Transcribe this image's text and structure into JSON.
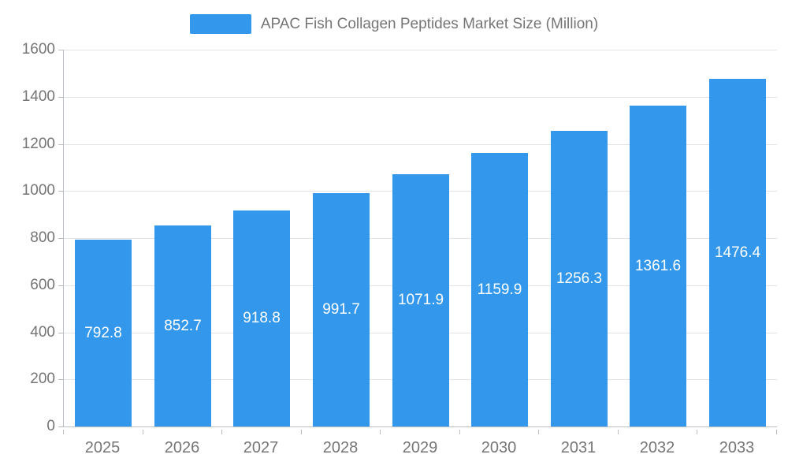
{
  "legend": {
    "label": "APAC Fish Collagen Peptides Market Size (Million)"
  },
  "chart_data": {
    "type": "bar",
    "title": "APAC Fish Collagen Peptides Market Size (Million)",
    "series_name": "APAC Fish Collagen Peptides Market Size (Million)",
    "categories": [
      "2025",
      "2026",
      "2027",
      "2028",
      "2029",
      "2030",
      "2031",
      "2032",
      "2033"
    ],
    "values": [
      792.8,
      852.7,
      918.8,
      991.7,
      1071.9,
      1159.9,
      1256.3,
      1361.6,
      1476.4
    ],
    "value_labels": [
      "792.8",
      "852.7",
      "918.8",
      "991.7",
      "1071.9",
      "1159.9",
      "1256.3",
      "1361.6",
      "1476.4"
    ],
    "xlabel": "",
    "ylabel": "",
    "ylim": [
      0,
      1600
    ],
    "ytick_step": 200,
    "ytick_labels": [
      "0",
      "200",
      "400",
      "600",
      "800",
      "1000",
      "1200",
      "1400",
      "1600"
    ],
    "grid": true,
    "legend_position": "top",
    "bar_color": "#3398EC",
    "value_label_color": "#FFFFFF",
    "axis_text_color": "#757575",
    "grid_line_color": "#E0E3E8",
    "axis_line_color": "#B9BEC4"
  }
}
